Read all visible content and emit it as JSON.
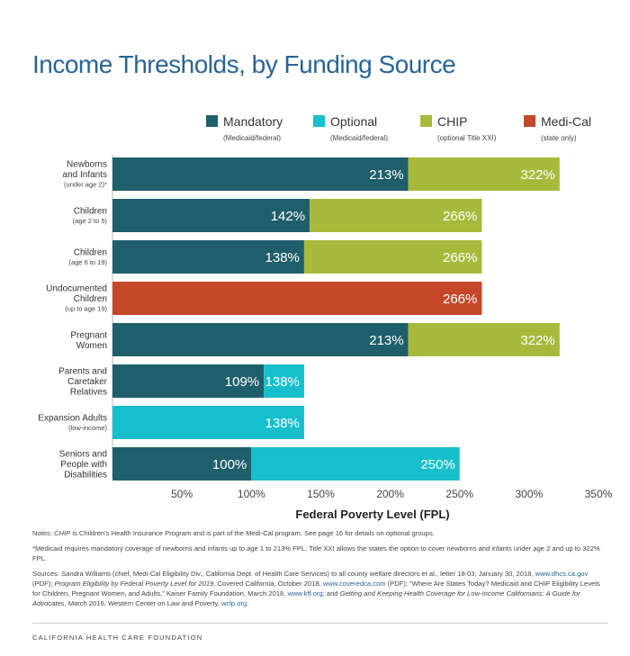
{
  "title": "Income Thresholds, by Funding Source",
  "colors": {
    "mandatory": "#1f5f6b",
    "optional": "#17bfcc",
    "chip": "#a7ba3b",
    "medi_cal": "#c4472a",
    "title": "#2a6495"
  },
  "chart_data": {
    "type": "bar",
    "orientation": "horizontal",
    "stacked": true,
    "title": "Income Thresholds, by Funding Source",
    "xlabel": "Federal Poverty Level (FPL)",
    "xlim": [
      0,
      350
    ],
    "x_ticks": [
      50,
      100,
      150,
      200,
      250,
      300,
      350
    ],
    "x_tick_labels": [
      "50%",
      "100%",
      "150%",
      "200%",
      "250%",
      "300%",
      "350%"
    ],
    "legend": [
      {
        "key": "mandatory",
        "name": "Mandatory",
        "sub": "(Medicaid/federal)"
      },
      {
        "key": "optional",
        "name": "Optional",
        "sub": "(Medicaid/federal)"
      },
      {
        "key": "chip",
        "name": "CHIP",
        "sub": "(optional Title XXI)"
      },
      {
        "key": "medi_cal",
        "name": "Medi-Cal",
        "sub": "(state only)"
      }
    ],
    "legend_position": "top",
    "categories": [
      {
        "lines": [
          "Newborns",
          "and Infants"
        ],
        "sub": "(under age 2)*",
        "segments": [
          {
            "key": "mandatory",
            "end": 213,
            "label": "213%"
          },
          {
            "key": "chip",
            "end": 322,
            "label": "322%"
          }
        ]
      },
      {
        "lines": [
          "Children"
        ],
        "sub": "(age 2 to 5)",
        "segments": [
          {
            "key": "mandatory",
            "end": 142,
            "label": "142%"
          },
          {
            "key": "chip",
            "end": 266,
            "label": "266%"
          }
        ]
      },
      {
        "lines": [
          "Children"
        ],
        "sub": "(age 6 to 19)",
        "segments": [
          {
            "key": "mandatory",
            "end": 138,
            "label": "138%"
          },
          {
            "key": "chip",
            "end": 266,
            "label": "266%"
          }
        ]
      },
      {
        "lines": [
          "Undocumented",
          "Children"
        ],
        "sub": "(up to age 19)",
        "segments": [
          {
            "key": "medi_cal",
            "end": 266,
            "label": "266%"
          }
        ]
      },
      {
        "lines": [
          "Pregnant",
          "Women"
        ],
        "sub": "",
        "segments": [
          {
            "key": "mandatory",
            "end": 213,
            "label": "213%"
          },
          {
            "key": "chip",
            "end": 322,
            "label": "322%"
          }
        ]
      },
      {
        "lines": [
          "Parents and",
          "Caretaker",
          "Relatives"
        ],
        "sub": "",
        "segments": [
          {
            "key": "mandatory",
            "end": 109,
            "label": "109%"
          },
          {
            "key": "optional",
            "end": 138,
            "label": "138%"
          }
        ]
      },
      {
        "lines": [
          "Expansion Adults"
        ],
        "sub": "(low-income)",
        "segments": [
          {
            "key": "optional",
            "end": 138,
            "label": "138%"
          }
        ]
      },
      {
        "lines": [
          "Seniors and",
          "People with",
          "Disabilities"
        ],
        "sub": "",
        "segments": [
          {
            "key": "mandatory",
            "end": 100,
            "label": "100%"
          },
          {
            "key": "optional",
            "end": 250,
            "label": "250%"
          }
        ]
      }
    ]
  },
  "notes": {
    "note1_prefix": "Notes: ",
    "note1_em": "CHIP",
    "note1_rest": " is Children’s Health Insurance Program and is part of the Medi-Cal program. See page 16 for details on optional groups.",
    "note2": "*Medicaid requires mandatory coverage of newborns and infants up to age 1 to 213% FPL. Title XXI allows the states the option to cover newborns and infants under age 2 and up to 322% FPL.",
    "src_a": "Sources: Sandra Williams (chief, Medi-Cal Eligibility Div., California Dept. of Health Care Services) to all county welfare directors et al., letter 18-03, January 30, 2018, ",
    "src_link1": "www.dhcs.ca.gov",
    "src_b": " (PDF); ",
    "src_em1": "Program Eligibility by Federal Poverty Level for 2019",
    "src_c": ", Covered California, October 2018, ",
    "src_link2": "www.coveredca.com",
    "src_d": " (PDF); “Where Are States Today? Medicaid and CHIP Eligibility Levels for Children, Pregnant Women, and Adults,” Kaiser Family Foundation, March 2018, ",
    "src_link3": "www.kff.org",
    "src_e": "; and ",
    "src_em2": "Getting and Keeping Health Coverage for Low-Income Californians: A Guide for Advocates",
    "src_f": ", March 2016, Western Center on Law and Poverty, ",
    "src_link4": "wclp.org",
    "src_g": "."
  },
  "footer": "CALIFORNIA HEALTH CARE FOUNDATION"
}
